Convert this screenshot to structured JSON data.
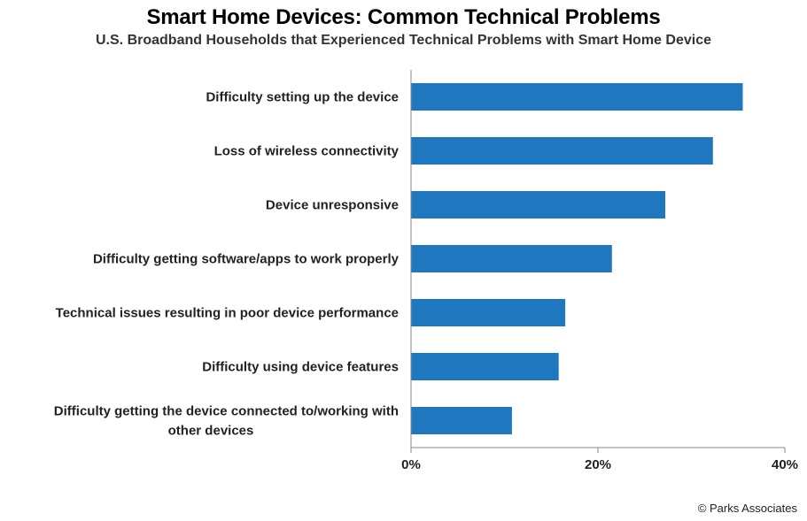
{
  "title": "Smart Home Devices: Common Technical Problems",
  "subtitle": "U.S. Broadband Households that Experienced Technical Problems with Smart Home Device",
  "source": "© Parks Associates",
  "colors": {
    "bar": "#1f77c0",
    "axis": "#888888"
  },
  "chart_data": {
    "type": "bar",
    "orientation": "horizontal",
    "title": "Smart Home Devices: Common Technical Problems",
    "subtitle": "U.S. Broadband Households that Experienced Technical Problems with Smart Home Device",
    "categories": [
      [
        "Difficulty setting up the device"
      ],
      [
        "Loss of wireless connectivity"
      ],
      [
        "Device unresponsive"
      ],
      [
        "Difficulty getting software/apps to work properly"
      ],
      [
        "Technical issues resulting in poor device performance"
      ],
      [
        "Difficulty using device features"
      ],
      [
        "Difficulty getting the device connected to/working with",
        "other devices"
      ]
    ],
    "values": [
      35.5,
      32.3,
      27.2,
      21.5,
      16.5,
      15.8,
      10.8
    ],
    "xlim": [
      0,
      40
    ],
    "xticks": [
      0,
      20,
      40
    ],
    "tick_labels": [
      "0%",
      "20%",
      "40%"
    ],
    "grid": false,
    "legend": "none"
  }
}
